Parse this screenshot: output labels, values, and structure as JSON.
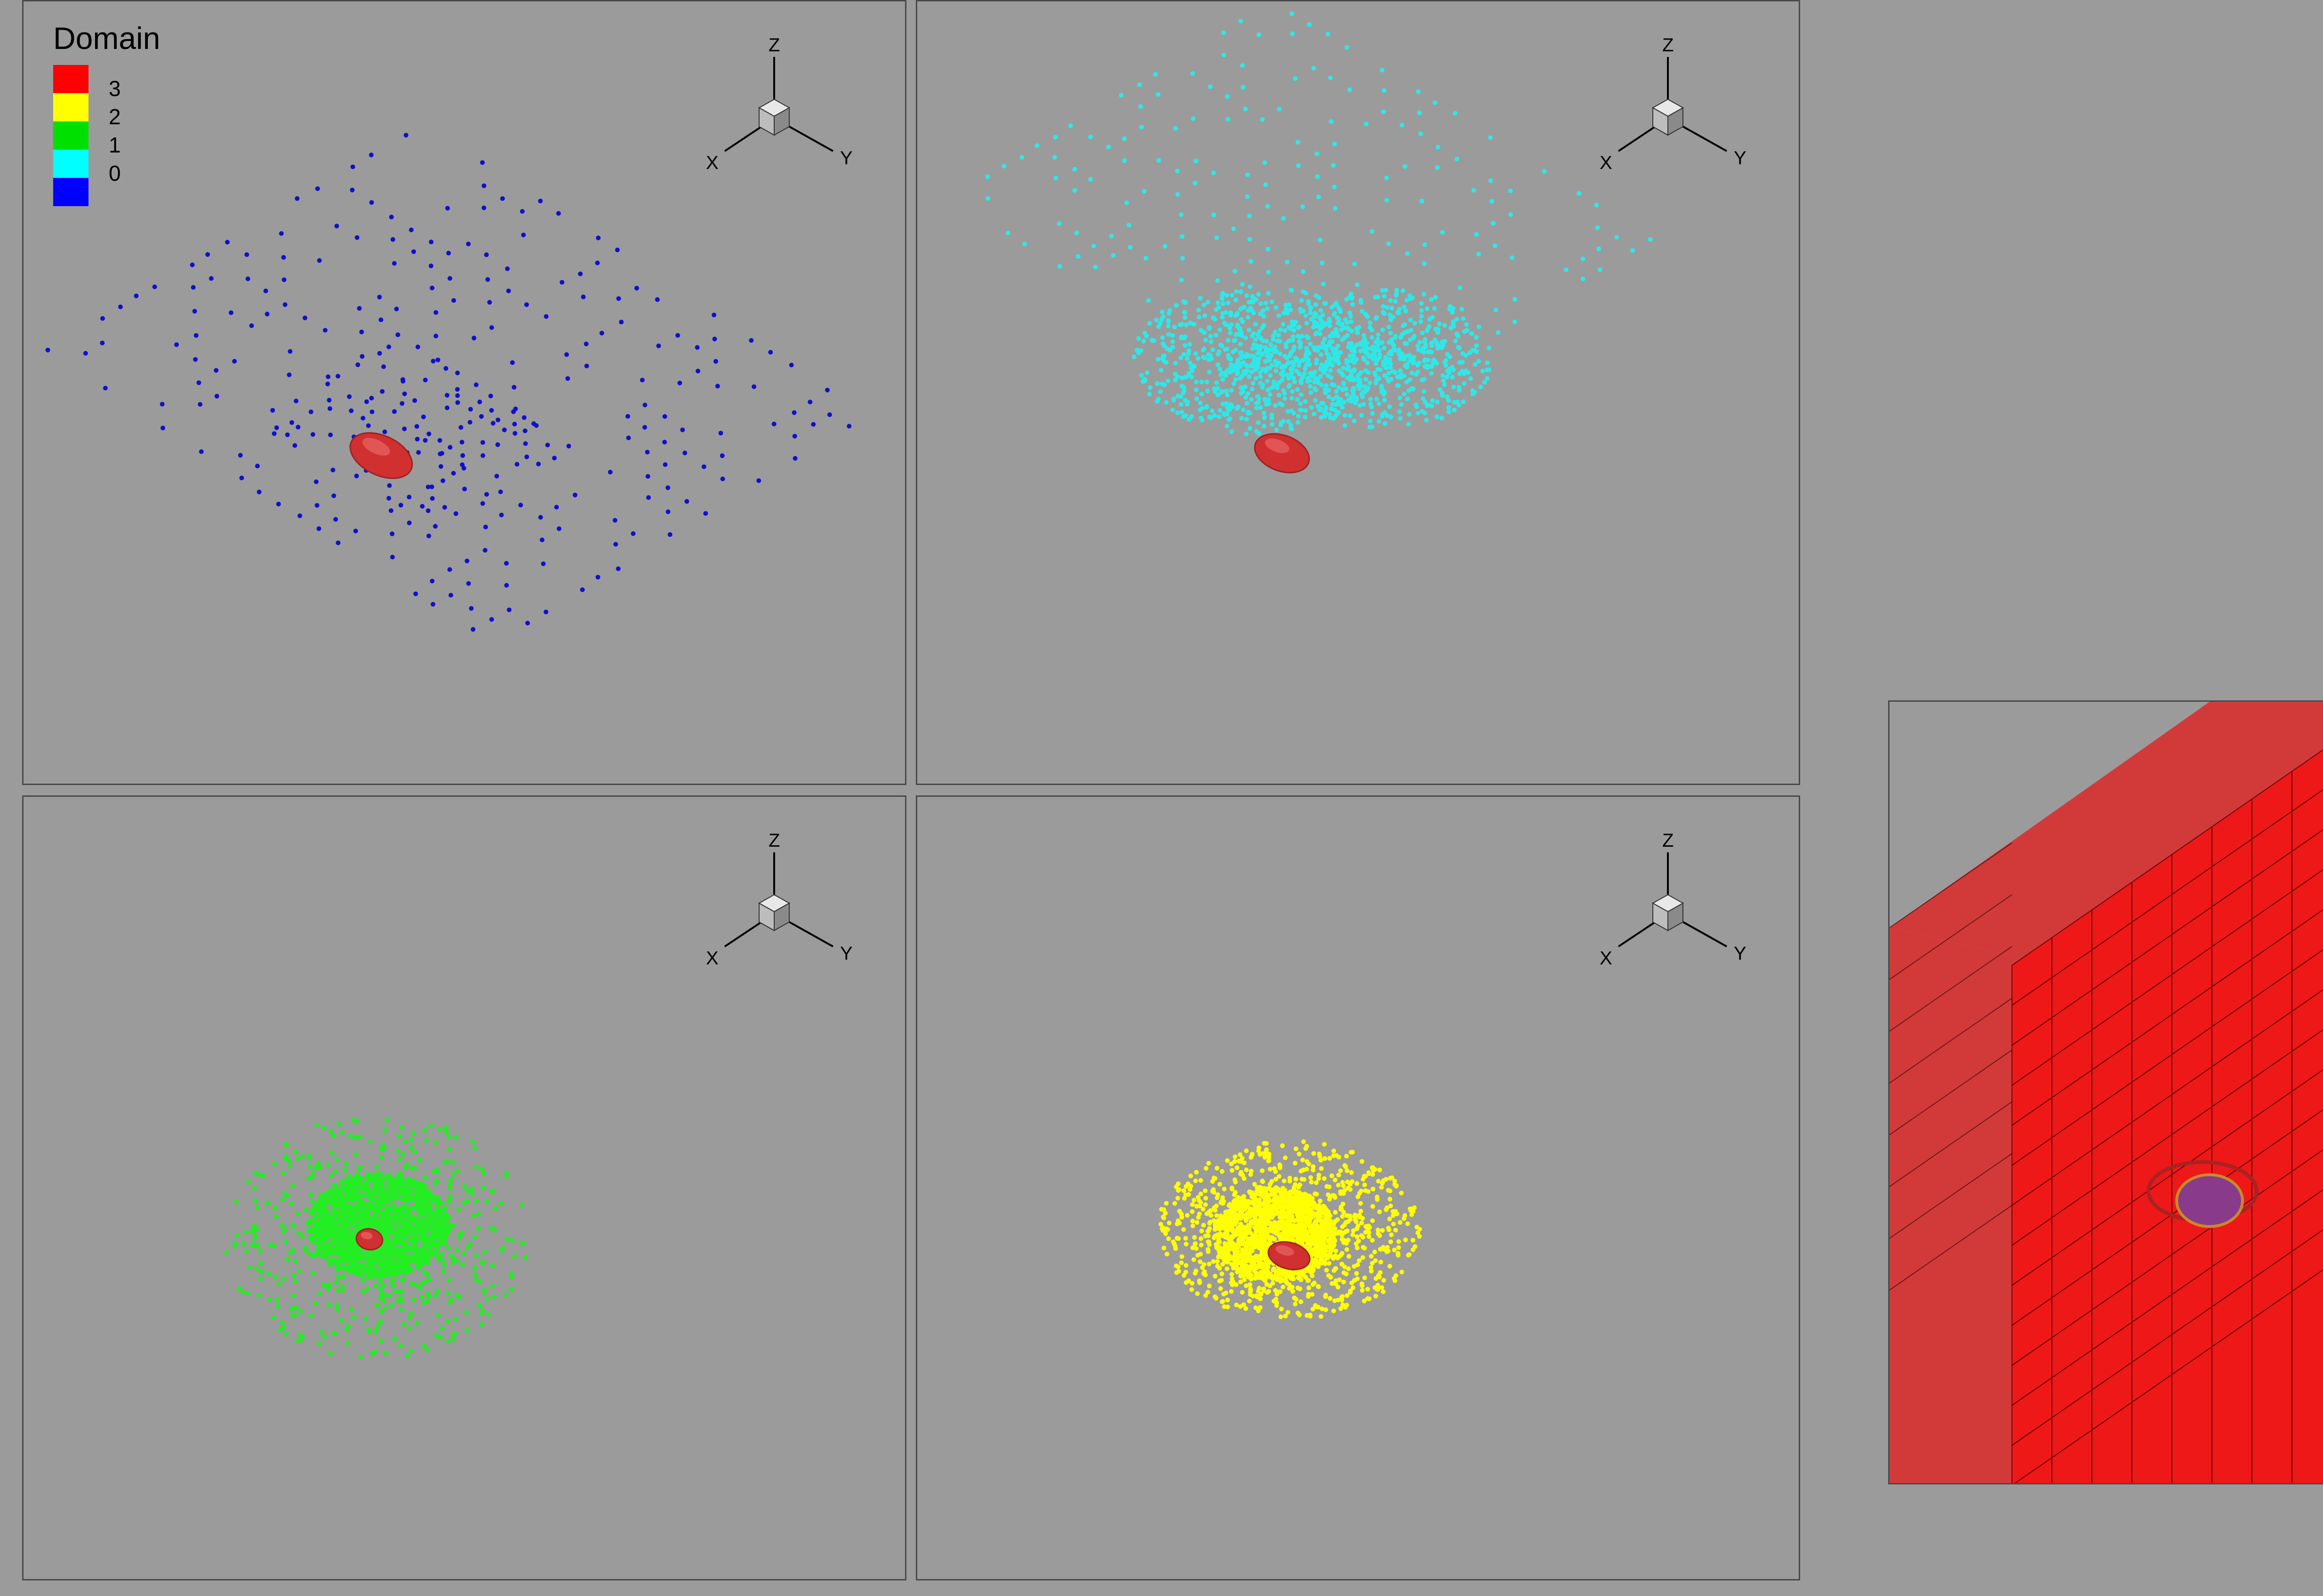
{
  "legend": {
    "title": "Domain",
    "levels": [
      {
        "label": "3",
        "color": "#ff0000"
      },
      {
        "label": "2",
        "color": "#ffff00"
      },
      {
        "label": "1",
        "color": "#00e000"
      },
      {
        "label": "",
        "color": "#00ffff"
      },
      {
        "label": "0",
        "color": "#0000ff"
      }
    ]
  },
  "axis_triad": {
    "x_label": "X",
    "y_label": "Y",
    "z_label": "Z"
  },
  "colors": {
    "background": "#9b9b9b",
    "domain0": "#1010cc",
    "domain1": "#2ee8e8",
    "domain2": "#22ee22",
    "domain3": "#ffff00",
    "particle": "#d03030",
    "mesh_red": "#ee1818"
  },
  "chart_data": [
    {
      "type": "scatter",
      "panel": "top-left",
      "domain": "0",
      "color": "#1010cc",
      "description": "coarse 3D point distribution with red ellipsoid particle"
    },
    {
      "type": "scatter",
      "panel": "top-right",
      "domain": "1",
      "color": "#2ee8e8",
      "description": "3D point distribution with red ellipsoid particle"
    },
    {
      "type": "scatter",
      "panel": "bottom-left",
      "domain": "2",
      "color": "#22ee22",
      "description": "dense point cluster around particle"
    },
    {
      "type": "scatter",
      "panel": "bottom-right",
      "domain": "3",
      "color": "#ffff00",
      "description": "refined point cluster around particle"
    },
    {
      "type": "heatmap",
      "panel": "right-zoom",
      "description": "zoomed red mesh view with refined cells near particle"
    }
  ]
}
